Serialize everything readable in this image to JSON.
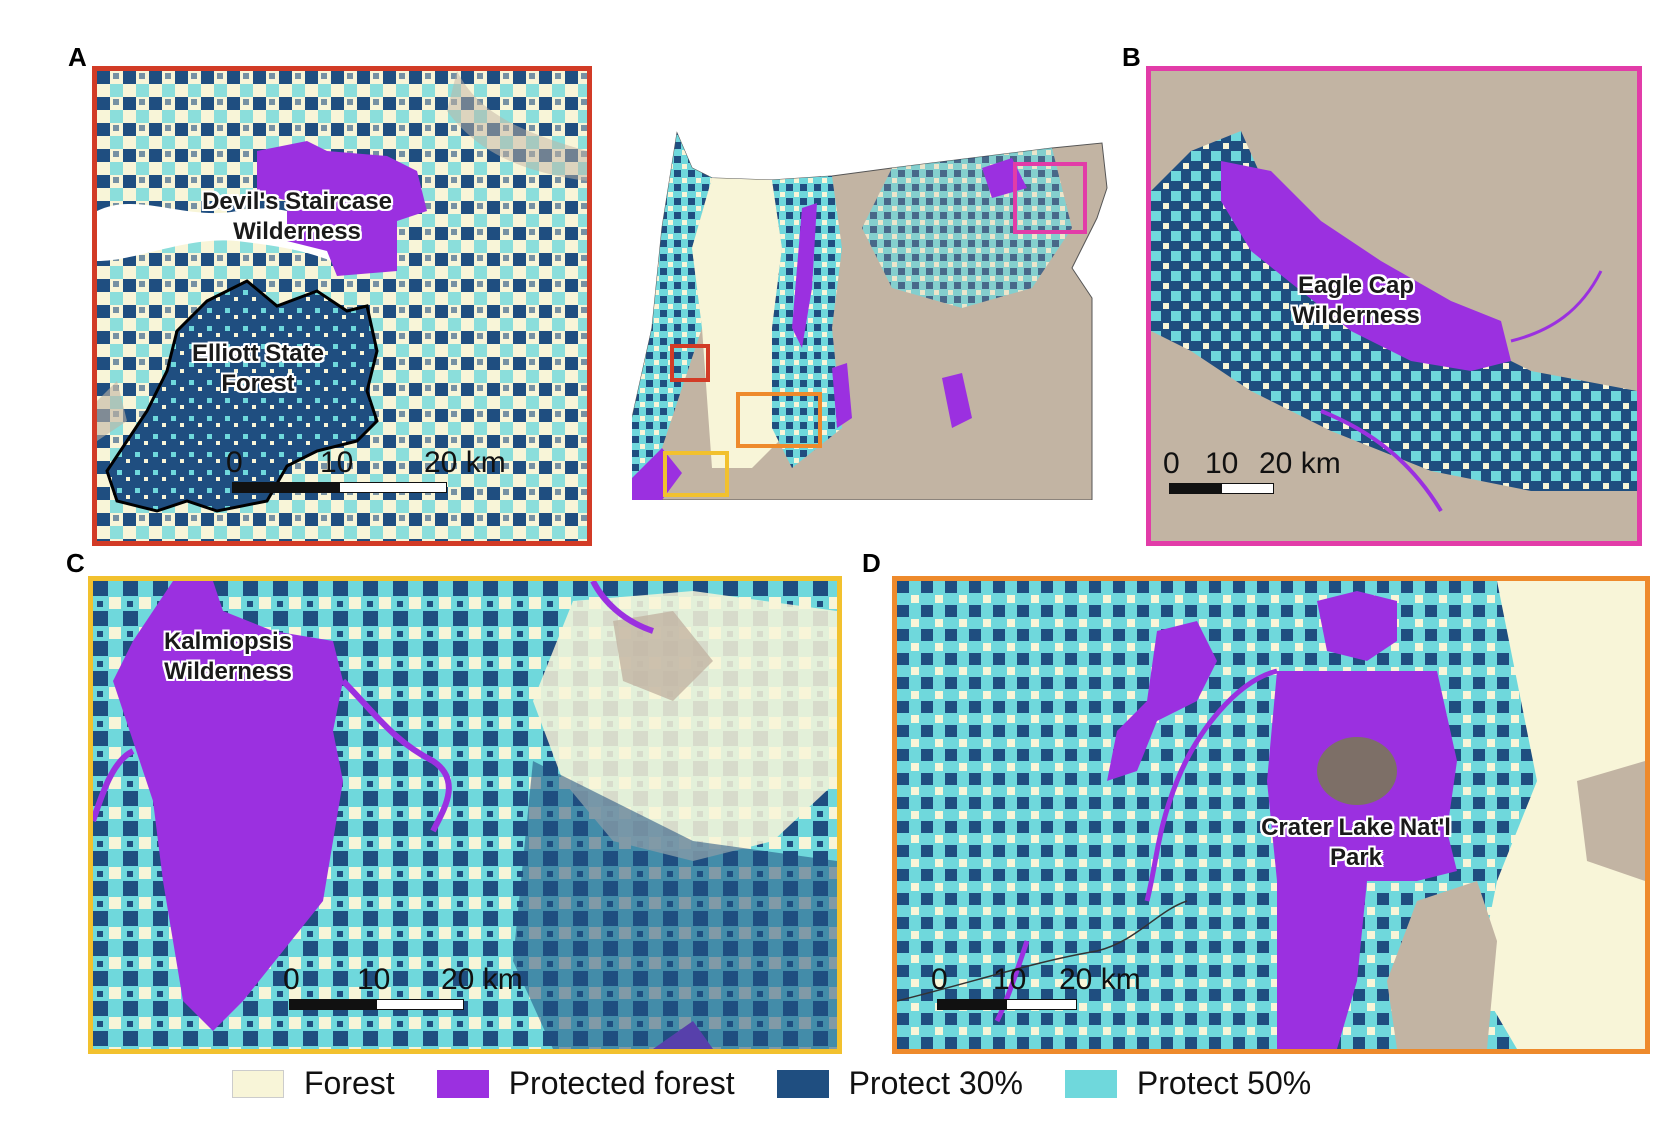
{
  "colors": {
    "forest": "#f8f5d8",
    "protected_forest": "#9b30e0",
    "protect30": "#1f4e80",
    "protect50": "#6fd8dc",
    "nonforest": "#c2b4a3",
    "frame_a": "#d23b26",
    "frame_b": "#e23ca8",
    "frame_c": "#f2c12e",
    "frame_d": "#ee8a2c"
  },
  "panels": {
    "a": {
      "letter": "A",
      "labels": [
        "Devil's Staircase Wilderness",
        "Elliott State Forest"
      ],
      "scale": {
        "ticks": [
          "0",
          "10",
          "20 km"
        ]
      }
    },
    "b": {
      "letter": "B",
      "labels": [
        "Eagle Cap Wilderness"
      ],
      "scale": {
        "ticks": [
          "0",
          "10",
          "20 km"
        ]
      }
    },
    "c": {
      "letter": "C",
      "labels": [
        "Kalmiopsis Wilderness"
      ],
      "scale": {
        "ticks": [
          "0",
          "10",
          "20 km"
        ]
      }
    },
    "d": {
      "letter": "D",
      "labels": [
        "Crater Lake Nat'l Park"
      ],
      "scale": {
        "ticks": [
          "0",
          "10",
          "20 km"
        ]
      }
    }
  },
  "legend": [
    {
      "label": "Forest",
      "color": "#f8f5d8"
    },
    {
      "label": "Protected forest",
      "color": "#9b30e0"
    },
    {
      "label": "Protect 30%",
      "color": "#1f4e80"
    },
    {
      "label": "Protect 50%",
      "color": "#6fd8dc"
    }
  ]
}
